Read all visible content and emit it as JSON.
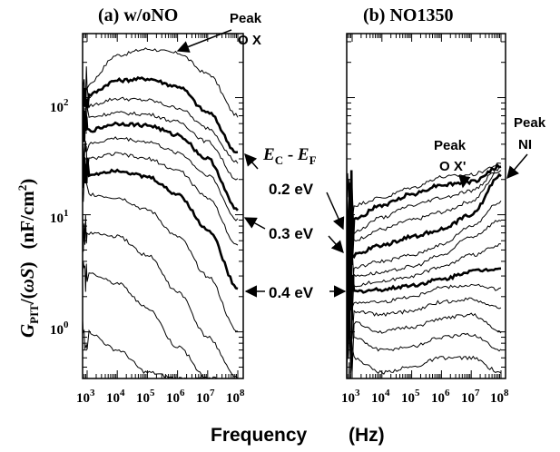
{
  "figure": {
    "xlabel": "Frequency",
    "xunit": "(Hz)",
    "ylabel_main": "G",
    "ylabel_sub": "PIT",
    "ylabel_tail": "/(",
    "ylabel_omega": "ω",
    "ylabel_s": "S",
    "ylabel_close": ")",
    "yunit_open": "(nF/cm",
    "yunit_sup": "2",
    "yunit_close": ")",
    "ytick_labels": [
      {
        "base": "10",
        "exp": "0"
      },
      {
        "base": "10",
        "exp": "1"
      },
      {
        "base": "10",
        "exp": "2"
      }
    ],
    "xtick_labels": [
      {
        "base": "10",
        "exp": "3"
      },
      {
        "base": "10",
        "exp": "4"
      },
      {
        "base": "10",
        "exp": "5"
      },
      {
        "base": "10",
        "exp": "6"
      },
      {
        "base": "10",
        "exp": "7"
      },
      {
        "base": "10",
        "exp": "8"
      }
    ],
    "annotations": {
      "ec_ef_e1": "E",
      "ec_ef_s1": "C",
      "ec_ef_mid": " - ",
      "ec_ef_e2": "E",
      "ec_ef_s2": "F",
      "ev_02": "0.2 eV",
      "ev_03": "0.3 eV",
      "ev_04": "0.4 eV",
      "peak_ox_1": "Peak",
      "peak_ox_2": "O X",
      "peak_oxp_1": "Peak",
      "peak_oxp_2": "O X'",
      "peak_ni_1": "Peak",
      "peak_ni_2": "NI"
    }
  },
  "chart_data": [
    {
      "type": "line",
      "title": "(a) w/oNO",
      "x_scale": "log",
      "y_scale": "log",
      "xlim": [
        500,
        100000000
      ],
      "ylim": [
        0.4,
        350
      ],
      "series": [
        {
          "bold": false,
          "x": [
            1000,
            10000,
            100000,
            1000000,
            10000000,
            100000000
          ],
          "values": [
            130,
            230,
            260,
            240,
            160,
            70
          ]
        },
        {
          "bold": true,
          "x": [
            1000,
            10000,
            100000,
            1000000,
            10000000,
            100000000
          ],
          "values": [
            105,
            140,
            145,
            125,
            75,
            34
          ]
        },
        {
          "bold": false,
          "x": [
            1000,
            10000,
            100000,
            1000000,
            10000000,
            100000000
          ],
          "values": [
            85,
            98,
            95,
            82,
            55,
            28
          ]
        },
        {
          "bold": false,
          "x": [
            1000,
            10000,
            100000,
            1000000,
            10000000,
            100000000
          ],
          "values": [
            68,
            74,
            72,
            62,
            42,
            20
          ]
        },
        {
          "bold": true,
          "x": [
            1000,
            10000,
            100000,
            1000000,
            10000000,
            100000000
          ],
          "values": [
            52,
            60,
            58,
            48,
            30,
            11
          ]
        },
        {
          "bold": false,
          "x": [
            1000,
            10000,
            100000,
            1000000,
            10000000,
            100000000
          ],
          "values": [
            40,
            45,
            42,
            34,
            22,
            9
          ]
        },
        {
          "bold": false,
          "x": [
            1000,
            10000,
            100000,
            1000000,
            10000000,
            100000000
          ],
          "values": [
            30,
            33,
            30,
            24,
            14,
            5.5
          ]
        },
        {
          "bold": true,
          "x": [
            1000,
            10000,
            100000,
            1000000,
            10000000,
            100000000
          ],
          "values": [
            22,
            24,
            21,
            15,
            7.5,
            2.4
          ]
        },
        {
          "bold": false,
          "x": [
            1000,
            10000,
            100000,
            1000000,
            10000000,
            100000000
          ],
          "values": [
            15,
            14,
            11,
            6.5,
            3.0,
            1.0
          ]
        },
        {
          "bold": false,
          "x": [
            1000,
            10000,
            100000,
            1000000,
            10000000,
            100000000
          ],
          "values": [
            7,
            6.5,
            4.5,
            2.2,
            0.9,
            0.4
          ]
        },
        {
          "bold": false,
          "x": [
            1000,
            10000,
            100000,
            1000000,
            10000000,
            100000000
          ],
          "values": [
            3.2,
            2.6,
            1.6,
            0.75,
            0.4,
            0.4
          ]
        },
        {
          "bold": false,
          "x": [
            1000,
            10000,
            100000,
            1000000,
            10000000
          ],
          "values": [
            1.0,
            0.7,
            0.45,
            0.4,
            0.4
          ]
        }
      ]
    },
    {
      "type": "line",
      "title": "(b) NO1350",
      "x_scale": "log",
      "y_scale": "log",
      "xlim": [
        500,
        100000000
      ],
      "ylim": [
        0.4,
        350
      ],
      "series": [
        {
          "bold": false,
          "x": [
            1000,
            10000,
            100000,
            1000000,
            10000000,
            100000000
          ],
          "values": [
            12,
            14,
            17,
            21,
            22,
            27
          ]
        },
        {
          "bold": true,
          "x": [
            1000,
            10000,
            100000,
            1000000,
            10000000,
            100000000
          ],
          "values": [
            9,
            12,
            15,
            18,
            19,
            26
          ]
        },
        {
          "bold": false,
          "x": [
            1000,
            10000,
            100000,
            1000000,
            10000000,
            100000000
          ],
          "values": [
            7,
            9.5,
            12,
            14,
            16,
            25
          ]
        },
        {
          "bold": false,
          "x": [
            1000,
            10000,
            100000,
            1000000,
            10000000,
            100000000
          ],
          "values": [
            6,
            7.5,
            9,
            10.5,
            13,
            24
          ]
        },
        {
          "bold": true,
          "x": [
            1000,
            10000,
            100000,
            1000000,
            10000000,
            100000000
          ],
          "values": [
            4.5,
            5.5,
            6.5,
            7.5,
            10,
            22
          ]
        },
        {
          "bold": false,
          "x": [
            1000,
            10000,
            100000,
            1000000,
            10000000,
            100000000
          ],
          "values": [
            3.5,
            4.0,
            4.5,
            5.5,
            8,
            13
          ]
        },
        {
          "bold": false,
          "x": [
            1000,
            10000,
            100000,
            1000000,
            10000000,
            100000000
          ],
          "values": [
            3.0,
            3.2,
            3.6,
            4.5,
            6.5,
            9
          ]
        },
        {
          "bold": false,
          "x": [
            1000,
            10000,
            100000,
            1000000,
            10000000,
            100000000
          ],
          "values": [
            2.5,
            2.7,
            3.0,
            3.6,
            4.5,
            5.5
          ]
        },
        {
          "bold": true,
          "x": [
            1000,
            10000,
            100000,
            1000000,
            10000000,
            100000000
          ],
          "values": [
            2.2,
            2.3,
            2.5,
            2.8,
            3.3,
            3.5
          ]
        },
        {
          "bold": false,
          "x": [
            1000,
            10000,
            100000,
            1000000,
            10000000,
            100000000
          ],
          "values": [
            1.8,
            1.8,
            2.0,
            2.4,
            2.5,
            2.3
          ]
        },
        {
          "bold": false,
          "x": [
            1000,
            10000,
            100000,
            1000000,
            10000000,
            100000000
          ],
          "values": [
            1.5,
            1.4,
            1.5,
            1.8,
            1.9,
            1.6
          ]
        },
        {
          "bold": false,
          "x": [
            1000,
            10000,
            100000,
            1000000,
            10000000,
            100000000
          ],
          "values": [
            1.2,
            1.0,
            1.1,
            1.3,
            1.4,
            1.0
          ]
        },
        {
          "bold": false,
          "x": [
            1000,
            10000,
            100000,
            1000000,
            10000000,
            100000000
          ],
          "values": [
            0.9,
            0.7,
            0.75,
            0.9,
            0.95,
            0.7
          ]
        },
        {
          "bold": false,
          "x": [
            1000,
            10000,
            100000,
            1000000,
            10000000,
            100000000
          ],
          "values": [
            0.6,
            0.45,
            0.5,
            0.6,
            0.6,
            0.45
          ]
        }
      ]
    }
  ]
}
